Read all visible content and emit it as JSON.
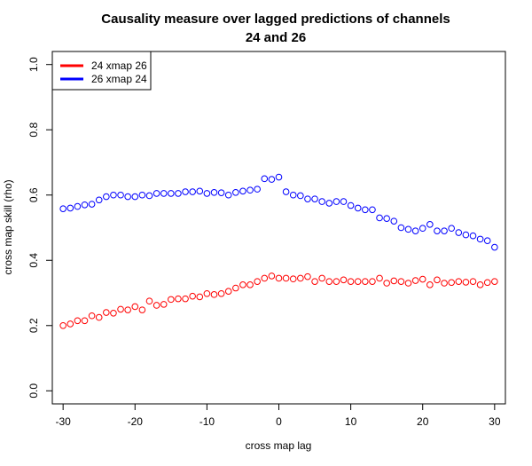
{
  "chart_data": {
    "type": "scatter",
    "title_lines": [
      "Causality measure over lagged predictions of channels",
      "24 and 26"
    ],
    "xlabel": "cross map lag",
    "ylabel": "cross map skill (rho)",
    "xlim": [
      -31.5,
      31.5
    ],
    "ylim": [
      -0.04,
      1.04
    ],
    "x_ticks": [
      -30,
      -20,
      -10,
      0,
      10,
      20,
      30
    ],
    "x_tick_labels": [
      "-30",
      "-20",
      "-10",
      "0",
      "10",
      "20",
      "30"
    ],
    "y_ticks": [
      0.0,
      0.2,
      0.4,
      0.6,
      0.8,
      1.0
    ],
    "y_tick_labels": [
      "0.0",
      "0.2",
      "0.4",
      "0.6",
      "0.8",
      "1.0"
    ],
    "grid": false,
    "legend_position": "top-left",
    "x": [
      -30,
      -29,
      -28,
      -27,
      -26,
      -25,
      -24,
      -23,
      -22,
      -21,
      -20,
      -19,
      -18,
      -17,
      -16,
      -15,
      -14,
      -13,
      -12,
      -11,
      -10,
      -9,
      -8,
      -7,
      -6,
      -5,
      -4,
      -3,
      -2,
      -1,
      0,
      1,
      2,
      3,
      4,
      5,
      6,
      7,
      8,
      9,
      10,
      11,
      12,
      13,
      14,
      15,
      16,
      17,
      18,
      19,
      20,
      21,
      22,
      23,
      24,
      25,
      26,
      27,
      28,
      29,
      30
    ],
    "series": [
      {
        "name": "24 xmap 26",
        "color": "#ff0000",
        "values": [
          0.2,
          0.205,
          0.215,
          0.215,
          0.23,
          0.225,
          0.24,
          0.238,
          0.25,
          0.248,
          0.258,
          0.248,
          0.275,
          0.262,
          0.265,
          0.28,
          0.282,
          0.282,
          0.29,
          0.288,
          0.298,
          0.295,
          0.298,
          0.305,
          0.315,
          0.325,
          0.325,
          0.335,
          0.345,
          0.352,
          0.345,
          0.345,
          0.343,
          0.345,
          0.35,
          0.335,
          0.345,
          0.335,
          0.335,
          0.34,
          0.335,
          0.335,
          0.335,
          0.335,
          0.345,
          0.33,
          0.337,
          0.335,
          0.33,
          0.338,
          0.342,
          0.325,
          0.34,
          0.33,
          0.332,
          0.335,
          0.333,
          0.335,
          0.325,
          0.332,
          0.335
        ]
      },
      {
        "name": "26 xmap 24",
        "color": "#0000ff",
        "values": [
          0.558,
          0.56,
          0.565,
          0.57,
          0.572,
          0.585,
          0.595,
          0.6,
          0.6,
          0.595,
          0.595,
          0.6,
          0.598,
          0.605,
          0.605,
          0.605,
          0.605,
          0.61,
          0.61,
          0.612,
          0.605,
          0.608,
          0.607,
          0.6,
          0.608,
          0.612,
          0.615,
          0.618,
          0.65,
          0.648,
          0.655,
          0.61,
          0.6,
          0.598,
          0.588,
          0.588,
          0.58,
          0.575,
          0.58,
          0.58,
          0.568,
          0.56,
          0.555,
          0.555,
          0.53,
          0.528,
          0.52,
          0.5,
          0.495,
          0.49,
          0.498,
          0.51,
          0.49,
          0.49,
          0.498,
          0.485,
          0.478,
          0.475,
          0.465,
          0.46,
          0.44
        ]
      }
    ]
  }
}
